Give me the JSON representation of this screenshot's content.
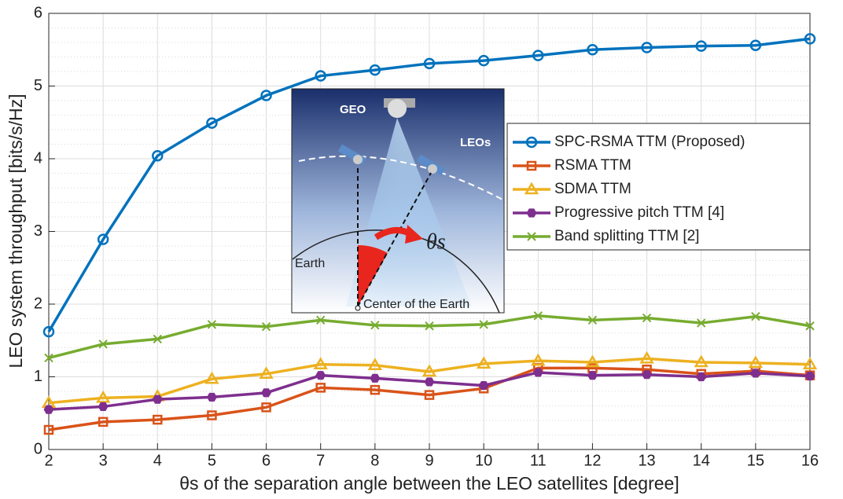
{
  "chart_data": {
    "type": "line",
    "xlabel": "θs of the separation angle between the LEO satellites [degree]",
    "ylabel": "LEO system throughput [bits/s/Hz]",
    "x": [
      2,
      3,
      4,
      5,
      6,
      7,
      8,
      9,
      10,
      11,
      12,
      13,
      14,
      15,
      16
    ],
    "xlim": [
      2,
      16
    ],
    "xticks": [
      2,
      3,
      4,
      5,
      6,
      7,
      8,
      9,
      10,
      11,
      12,
      13,
      14,
      15,
      16
    ],
    "ylim": [
      0,
      6
    ],
    "yticks": [
      0,
      1,
      2,
      3,
      4,
      5,
      6
    ],
    "grid": true,
    "minor_grid": true,
    "legend": "upper right",
    "series": [
      {
        "name": "SPC-RSMA TTM (Proposed)",
        "color": "#0072bd",
        "marker": "circle",
        "values": [
          1.62,
          2.89,
          4.04,
          4.49,
          4.87,
          5.14,
          5.22,
          5.31,
          5.35,
          5.42,
          5.5,
          5.53,
          5.55,
          5.56,
          5.65
        ]
      },
      {
        "name": "RSMA TTM",
        "color": "#d95319",
        "marker": "square",
        "values": [
          0.27,
          0.38,
          0.41,
          0.47,
          0.58,
          0.85,
          0.82,
          0.75,
          0.84,
          1.12,
          1.12,
          1.1,
          1.04,
          1.08,
          1.02
        ]
      },
      {
        "name": "SDMA TTM",
        "color": "#edb120",
        "marker": "triangle",
        "values": [
          0.64,
          0.71,
          0.73,
          0.97,
          1.04,
          1.17,
          1.16,
          1.07,
          1.18,
          1.22,
          1.2,
          1.25,
          1.2,
          1.19,
          1.17
        ]
      },
      {
        "name": "Progressive pitch TTM [4]",
        "color": "#7e2f8e",
        "marker": "hexagon",
        "values": [
          0.55,
          0.59,
          0.69,
          0.72,
          0.78,
          1.02,
          0.98,
          0.93,
          0.88,
          1.06,
          1.02,
          1.03,
          1.0,
          1.05,
          1.01
        ]
      },
      {
        "name": "Band splitting TTM [2]",
        "color": "#77ac30",
        "marker": "x",
        "values": [
          1.26,
          1.45,
          1.52,
          1.72,
          1.69,
          1.78,
          1.71,
          1.7,
          1.72,
          1.84,
          1.78,
          1.81,
          1.74,
          1.83,
          1.7
        ]
      }
    ],
    "inset_labels": [
      "GEO",
      "LEOs",
      "Earth",
      "Center of the Earth",
      "θs"
    ]
  }
}
